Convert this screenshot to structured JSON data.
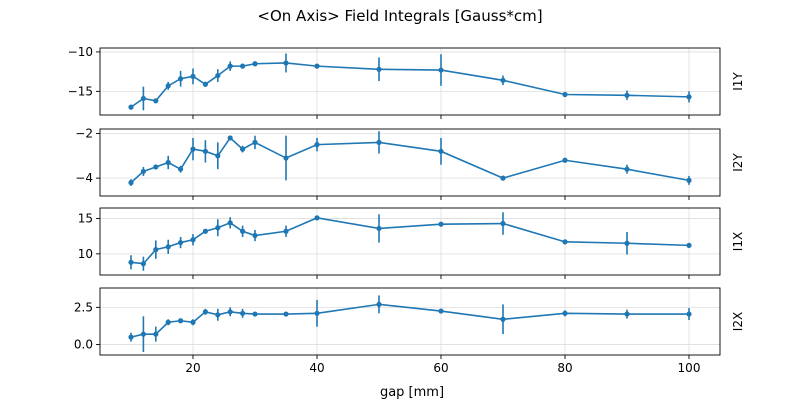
{
  "figure": {
    "title": "<On Axis> Field Integrals [Gauss*cm]",
    "xlabel": "gap [mm]",
    "line_color": "#1f77b4",
    "grid_color": "#dddddd"
  },
  "chart_data": [
    {
      "type": "line",
      "name": "I1Y",
      "side_label": "I1Y",
      "xlim": [
        5,
        105
      ],
      "ylim": [
        -18,
        -9.5
      ],
      "yticks": [
        -15,
        -10
      ],
      "ytick_labels": [
        "−15",
        "−10"
      ],
      "xticks": [
        20,
        40,
        60,
        80,
        100
      ],
      "xtick_labels": [
        "20",
        "40",
        "60",
        "80",
        "100"
      ],
      "grid": true,
      "x": [
        10,
        12,
        14,
        16,
        18,
        20,
        22,
        24,
        26,
        28,
        30,
        35,
        40,
        50,
        60,
        70,
        80,
        90,
        100
      ],
      "y": [
        -17.0,
        -15.9,
        -16.2,
        -14.3,
        -13.4,
        -13.1,
        -14.1,
        -13.0,
        -11.8,
        -11.8,
        -11.5,
        -11.4,
        -11.8,
        -12.2,
        -12.3,
        -13.6,
        -15.4,
        -15.5,
        -15.7
      ],
      "err": [
        0.2,
        1.5,
        0.3,
        0.5,
        1.0,
        1.0,
        0.3,
        0.8,
        0.6,
        0.3,
        0.3,
        1.2,
        0.2,
        1.5,
        2.0,
        0.6,
        0.3,
        0.6,
        0.7
      ]
    },
    {
      "type": "line",
      "name": "I2Y",
      "side_label": "I2Y",
      "xlim": [
        5,
        105
      ],
      "ylim": [
        -4.8,
        -1.8
      ],
      "yticks": [
        -4,
        -2
      ],
      "ytick_labels": [
        "−4",
        "−2"
      ],
      "xticks": [
        20,
        40,
        60,
        80,
        100
      ],
      "xtick_labels": [
        "20",
        "40",
        "60",
        "80",
        "100"
      ],
      "grid": true,
      "x": [
        10,
        12,
        14,
        16,
        18,
        20,
        22,
        24,
        26,
        28,
        30,
        35,
        40,
        50,
        60,
        70,
        80,
        90,
        100
      ],
      "y": [
        -4.2,
        -3.7,
        -3.5,
        -3.3,
        -3.6,
        -2.7,
        -2.8,
        -3.0,
        -2.2,
        -2.7,
        -2.4,
        -3.1,
        -2.5,
        -2.4,
        -2.8,
        -4.0,
        -3.2,
        -3.6,
        -4.1
      ],
      "err": [
        0.15,
        0.2,
        0.1,
        0.3,
        0.15,
        0.5,
        0.5,
        0.6,
        0.1,
        0.15,
        0.3,
        1.0,
        0.3,
        0.5,
        0.6,
        0.1,
        0.1,
        0.2,
        0.2
      ]
    },
    {
      "type": "line",
      "name": "I1X",
      "side_label": "I1X",
      "xlim": [
        5,
        105
      ],
      "ylim": [
        7,
        16.5
      ],
      "yticks": [
        10,
        15
      ],
      "ytick_labels": [
        "10",
        "15"
      ],
      "xticks": [
        20,
        40,
        60,
        80,
        100
      ],
      "xtick_labels": [
        "20",
        "40",
        "60",
        "80",
        "100"
      ],
      "grid": true,
      "x": [
        10,
        12,
        14,
        16,
        18,
        20,
        22,
        24,
        26,
        28,
        30,
        35,
        40,
        50,
        60,
        70,
        80,
        90,
        100
      ],
      "y": [
        8.8,
        8.6,
        10.6,
        11.0,
        11.6,
        12.0,
        13.2,
        13.7,
        14.4,
        13.2,
        12.6,
        13.2,
        15.1,
        13.6,
        14.2,
        14.3,
        11.7,
        11.5,
        11.2
      ],
      "err": [
        1.0,
        1.0,
        1.3,
        1.0,
        0.8,
        0.8,
        0.3,
        1.2,
        0.8,
        0.8,
        0.8,
        0.8,
        0.2,
        2.0,
        0.2,
        1.6,
        0.2,
        1.6,
        0.2
      ]
    },
    {
      "type": "line",
      "name": "I2X",
      "side_label": "I2X",
      "xlim": [
        5,
        105
      ],
      "ylim": [
        -0.7,
        3.8
      ],
      "yticks": [
        0,
        2.5
      ],
      "ytick_labels": [
        "0.0",
        "2.5"
      ],
      "xticks": [
        20,
        40,
        60,
        80,
        100
      ],
      "xtick_labels": [
        "20",
        "40",
        "60",
        "80",
        "100"
      ],
      "grid": true,
      "x": [
        10,
        12,
        14,
        16,
        18,
        20,
        22,
        24,
        26,
        28,
        30,
        35,
        40,
        50,
        60,
        70,
        80,
        90,
        100
      ],
      "y": [
        0.5,
        0.7,
        0.7,
        1.5,
        1.6,
        1.5,
        2.2,
        2.0,
        2.2,
        2.1,
        2.05,
        2.05,
        2.1,
        2.7,
        2.25,
        1.7,
        2.1,
        2.05,
        2.05
      ],
      "err": [
        0.3,
        1.2,
        0.5,
        0.2,
        0.1,
        0.2,
        0.2,
        0.4,
        0.3,
        0.3,
        0.1,
        0.1,
        0.9,
        0.6,
        0.1,
        1.0,
        0.2,
        0.3,
        0.4
      ]
    }
  ]
}
